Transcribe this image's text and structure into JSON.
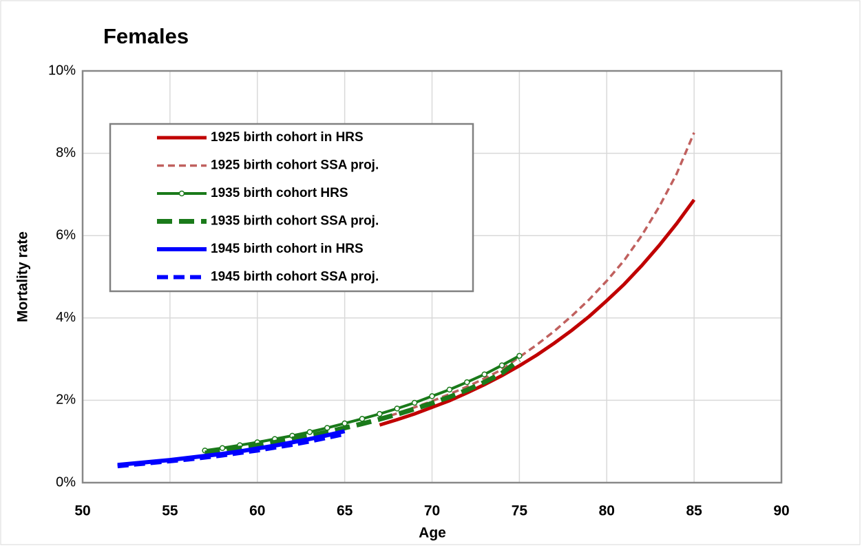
{
  "chart_data": {
    "type": "line",
    "title": "Females",
    "xlabel": "Age",
    "ylabel": "Mortality rate",
    "xlim": [
      50,
      90
    ],
    "xticks": [
      50,
      55,
      60,
      65,
      70,
      75,
      80,
      85,
      90
    ],
    "ylim": [
      0,
      10
    ],
    "yticks": [
      {
        "value": 0,
        "label": "0%"
      },
      {
        "value": 2,
        "label": "2%"
      },
      {
        "value": 4,
        "label": "4%"
      },
      {
        "value": 6,
        "label": "6%"
      },
      {
        "value": 8,
        "label": "8%"
      },
      {
        "value": 10,
        "label": "10%"
      }
    ],
    "grid": true,
    "legend": "upper left",
    "series": [
      {
        "name": "1925 birth cohort in HRS",
        "color": "#c00000",
        "width": 5,
        "dash": "none",
        "marker": false,
        "x": [
          67,
          68,
          69,
          70,
          71,
          72,
          73,
          74,
          75,
          76,
          77,
          78,
          79,
          80,
          81,
          82,
          83,
          84,
          85
        ],
        "values": [
          1.4,
          1.53,
          1.67,
          1.83,
          1.99,
          2.18,
          2.38,
          2.6,
          2.84,
          3.1,
          3.39,
          3.7,
          4.04,
          4.42,
          4.82,
          5.27,
          5.76,
          6.29,
          6.87
        ]
      },
      {
        "name": "1925 birth cohort SSA proj.",
        "color": "#c0605e",
        "width": 3.5,
        "dash": "10 6",
        "marker": false,
        "x": [
          67,
          68,
          69,
          70,
          71,
          72,
          73,
          74,
          75,
          76,
          77,
          78,
          79,
          80,
          81,
          82,
          83,
          84,
          85
        ],
        "values": [
          1.55,
          1.68,
          1.83,
          1.98,
          2.15,
          2.33,
          2.53,
          2.75,
          3.05,
          3.35,
          3.68,
          4.05,
          4.45,
          4.9,
          5.4,
          6.0,
          6.7,
          7.5,
          8.5
        ]
      },
      {
        "name": "1935 birth cohort HRS",
        "color": "#1a7a1a",
        "width": 4,
        "dash": "none",
        "marker": true,
        "x": [
          57,
          58,
          59,
          60,
          61,
          62,
          63,
          64,
          65,
          66,
          67,
          68,
          69,
          70,
          71,
          72,
          73,
          74,
          75
        ],
        "values": [
          0.78,
          0.84,
          0.91,
          0.98,
          1.06,
          1.14,
          1.23,
          1.33,
          1.44,
          1.55,
          1.67,
          1.8,
          1.94,
          2.1,
          2.26,
          2.44,
          2.63,
          2.85,
          3.08
        ]
      },
      {
        "name": "1935 birth cohort SSA proj.",
        "color": "#1a7a1a",
        "width": 7,
        "dash": "22 10",
        "marker": false,
        "x": [
          57,
          58,
          59,
          60,
          61,
          62,
          63,
          64,
          65,
          66,
          67,
          68,
          69,
          70,
          71,
          72,
          73,
          74,
          75
        ],
        "values": [
          0.72,
          0.78,
          0.84,
          0.91,
          0.98,
          1.06,
          1.14,
          1.23,
          1.33,
          1.43,
          1.54,
          1.66,
          1.79,
          1.93,
          2.08,
          2.25,
          2.44,
          2.66,
          2.98
        ]
      },
      {
        "name": "1945 birth cohort in HRS",
        "color": "#0000ff",
        "width": 6,
        "dash": "none",
        "marker": false,
        "x": [
          52,
          53,
          54,
          55,
          56,
          57,
          58,
          59,
          60,
          61,
          62,
          63,
          64,
          65
        ],
        "values": [
          0.43,
          0.47,
          0.51,
          0.55,
          0.6,
          0.65,
          0.7,
          0.76,
          0.83,
          0.9,
          0.98,
          1.06,
          1.15,
          1.25
        ]
      },
      {
        "name": "1945 birth cohort SSA proj.",
        "color": "#0000ff",
        "width": 6,
        "dash": "16 8",
        "marker": false,
        "x": [
          52,
          53,
          54,
          55,
          56,
          57,
          58,
          59,
          60,
          61,
          62,
          63,
          64,
          65
        ],
        "values": [
          0.4,
          0.44,
          0.48,
          0.52,
          0.56,
          0.61,
          0.66,
          0.72,
          0.78,
          0.85,
          0.92,
          1.0,
          1.09,
          1.18
        ]
      }
    ]
  }
}
